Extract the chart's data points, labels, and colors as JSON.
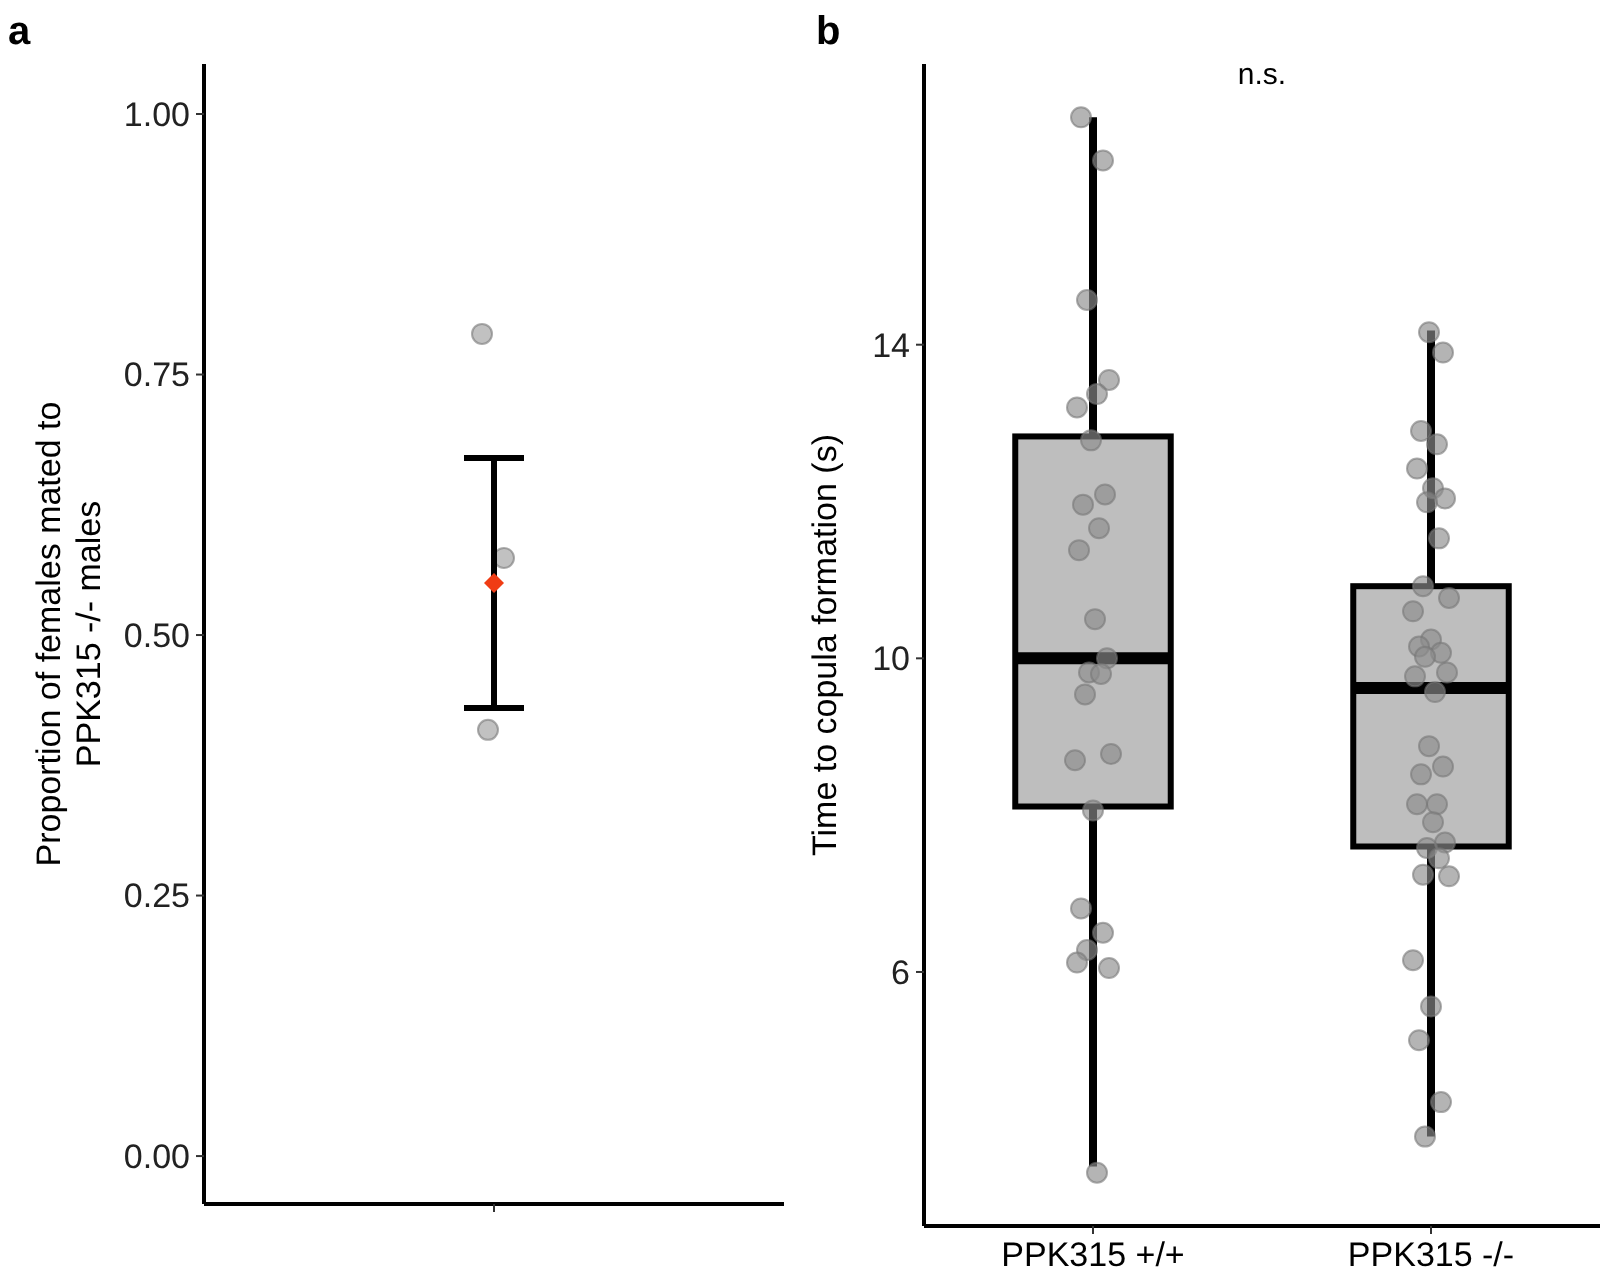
{
  "chart_data": [
    {
      "type": "scatter",
      "title": "a",
      "ylabel": "Proportion of females mated to PPK315 -/- males",
      "categories": [
        null
      ],
      "ylim": [
        -0.046,
        1.048
      ],
      "yticks": [
        {
          "value": 0,
          "label": "0.00"
        },
        {
          "value": 0.25,
          "label": "0.25"
        },
        {
          "value": 0.5,
          "label": "0.50"
        },
        {
          "value": 0.75,
          "label": "0.75"
        },
        {
          "value": 1,
          "label": "1.00"
        }
      ],
      "series": [
        {
          "color": "#a0a0a0",
          "marker": "circle",
          "x": [
            null,
            null,
            null
          ],
          "values": [
            0.789,
            0.574,
            0.409
          ]
        },
        {
          "color": "#f03c14",
          "marker": "diamond",
          "x": [
            null
          ],
          "values": [
            0.55
          ],
          "errors": [
            [
              0.43,
              0.67
            ]
          ]
        }
      ]
    },
    {
      "type": "box",
      "title": "b",
      "ylabel": "Time to copula formation (s)",
      "categories": [
        "PPK315 +/+",
        "PPK315 -/-"
      ],
      "ylim": [
        2.76,
        17.58
      ],
      "yticks": [
        6,
        10,
        14
      ],
      "annotations": [
        "n.s."
      ],
      "series": [
        {
          "color": "#bebebe",
          "boxes": [
            {
              "low": 3.52,
              "q1": 8.11,
              "median": 10.0,
              "q3": 12.83,
              "high": 16.9
            },
            {
              "low": 3.9,
              "q1": 7.6,
              "median": 9.62,
              "q3": 10.92,
              "high": 14.18
            }
          ]
        },
        {
          "type": "scatter",
          "color": "#8c8c8c",
          "marker": "circle",
          "x": [
            "PPK315 +/+",
            "PPK315 +/+",
            "PPK315 +/+",
            "PPK315 +/+",
            "PPK315 +/+",
            "PPK315 +/+",
            "PPK315 +/+",
            "PPK315 +/+",
            "PPK315 +/+",
            "PPK315 +/+",
            "PPK315 +/+",
            "PPK315 +/+",
            "PPK315 +/+",
            "PPK315 +/+",
            "PPK315 +/+",
            "PPK315 +/+",
            "PPK315 +/+",
            "PPK315 +/+",
            "PPK315 +/+",
            "PPK315 +/+",
            "PPK315 +/+",
            "PPK315 +/+",
            "PPK315 +/+",
            "PPK315 +/+",
            "PPK315 +/+",
            "PPK315 -/-",
            "PPK315 -/-",
            "PPK315 -/-",
            "PPK315 -/-",
            "PPK315 -/-",
            "PPK315 -/-",
            "PPK315 -/-",
            "PPK315 -/-",
            "PPK315 -/-",
            "PPK315 -/-",
            "PPK315 -/-",
            "PPK315 -/-",
            "PPK315 -/-",
            "PPK315 -/-",
            "PPK315 -/-",
            "PPK315 -/-",
            "PPK315 -/-",
            "PPK315 -/-",
            "PPK315 -/-",
            "PPK315 -/-",
            "PPK315 -/-",
            "PPK315 -/-",
            "PPK315 -/-",
            "PPK315 -/-",
            "PPK315 -/-",
            "PPK315 -/-",
            "PPK315 -/-",
            "PPK315 -/-",
            "PPK315 -/-",
            "PPK315 -/-",
            "PPK315 -/-",
            "PPK315 -/-",
            "PPK315 -/-",
            "PPK315 -/-",
            "PPK315 -/-"
          ],
          "values": [
            16.9,
            16.35,
            14.57,
            13.55,
            13.2,
            13.37,
            12.78,
            12.09,
            11.96,
            11.66,
            11.38,
            10.5,
            10.0,
            9.82,
            9.8,
            9.54,
            8.78,
            8.7,
            8.06,
            6.81,
            6.5,
            6.28,
            6.05,
            6.12,
            3.44,
            14.16,
            13.9,
            12.9,
            12.73,
            12.42,
            12.17,
            12.04,
            11.99,
            11.53,
            10.92,
            10.77,
            10.6,
            10.24,
            10.15,
            10.07,
            10.02,
            9.82,
            9.77,
            9.57,
            8.88,
            8.62,
            8.52,
            8.14,
            8.14,
            7.91,
            7.65,
            7.58,
            7.45,
            7.24,
            7.22,
            6.15,
            5.56,
            5.13,
            4.34,
            3.9
          ]
        }
      ]
    }
  ]
}
